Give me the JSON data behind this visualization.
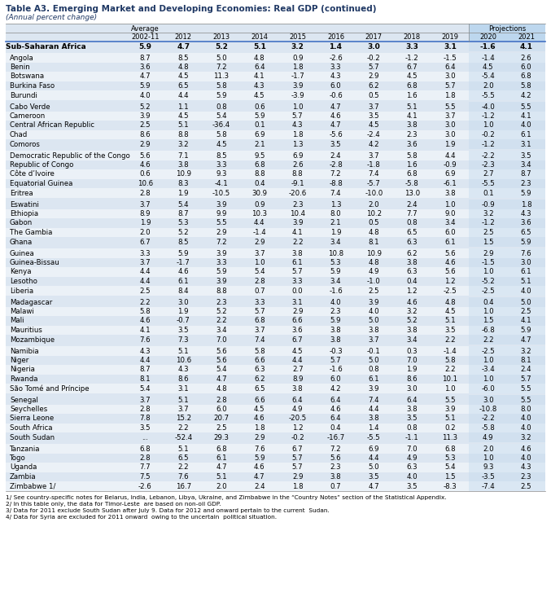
{
  "title": "Table A3. Emerging Market and Developing Economies: Real GDP (continued)",
  "subtitle": "(Annual percent change)",
  "table_bg": "#dce6f1",
  "header_line_color": "#4472c4",
  "proj_col_bg": "#bdd7ee",
  "rows": [
    [
      "Sub-Saharan Africa",
      "5.9",
      "4.7",
      "5.2",
      "5.1",
      "3.2",
      "1.4",
      "3.0",
      "3.3",
      "3.1",
      "-1.6",
      "4.1"
    ],
    [
      "Angola",
      "8.7",
      "8.5",
      "5.0",
      "4.8",
      "0.9",
      "-2.6",
      "-0.2",
      "-1.2",
      "-1.5",
      "-1.4",
      "2.6"
    ],
    [
      "Benin",
      "3.6",
      "4.8",
      "7.2",
      "6.4",
      "1.8",
      "3.3",
      "5.7",
      "6.7",
      "6.4",
      "4.5",
      "6.0"
    ],
    [
      "Botswana",
      "4.7",
      "4.5",
      "11.3",
      "4.1",
      "-1.7",
      "4.3",
      "2.9",
      "4.5",
      "3.0",
      "-5.4",
      "6.8"
    ],
    [
      "Burkina Faso",
      "5.9",
      "6.5",
      "5.8",
      "4.3",
      "3.9",
      "6.0",
      "6.2",
      "6.8",
      "5.7",
      "2.0",
      "5.8"
    ],
    [
      "Burundi",
      "4.0",
      "4.4",
      "5.9",
      "4.5",
      "-3.9",
      "-0.6",
      "0.5",
      "1.6",
      "1.8",
      "-5.5",
      "4.2"
    ],
    [
      "Cabo Verde",
      "5.2",
      "1.1",
      "0.8",
      "0.6",
      "1.0",
      "4.7",
      "3.7",
      "5.1",
      "5.5",
      "-4.0",
      "5.5"
    ],
    [
      "Cameroon",
      "3.9",
      "4.5",
      "5.4",
      "5.9",
      "5.7",
      "4.6",
      "3.5",
      "4.1",
      "3.7",
      "-1.2",
      "4.1"
    ],
    [
      "Central African Republic",
      "2.5",
      "5.1",
      "-36.4",
      "0.1",
      "4.3",
      "4.7",
      "4.5",
      "3.8",
      "3.0",
      "1.0",
      "4.0"
    ],
    [
      "Chad",
      "8.6",
      "8.8",
      "5.8",
      "6.9",
      "1.8",
      "-5.6",
      "-2.4",
      "2.3",
      "3.0",
      "-0.2",
      "6.1"
    ],
    [
      "Comoros",
      "2.9",
      "3.2",
      "4.5",
      "2.1",
      "1.3",
      "3.5",
      "4.2",
      "3.6",
      "1.9",
      "-1.2",
      "3.1"
    ],
    [
      "Democratic Republic of the Congo",
      "5.6",
      "7.1",
      "8.5",
      "9.5",
      "6.9",
      "2.4",
      "3.7",
      "5.8",
      "4.4",
      "-2.2",
      "3.5"
    ],
    [
      "Republic of Congo",
      "4.6",
      "3.8",
      "3.3",
      "6.8",
      "2.6",
      "-2.8",
      "-1.8",
      "1.6",
      "-0.9",
      "-2.3",
      "3.4"
    ],
    [
      "Côte d’Ivoire",
      "0.6",
      "10.9",
      "9.3",
      "8.8",
      "8.8",
      "7.2",
      "7.4",
      "6.8",
      "6.9",
      "2.7",
      "8.7"
    ],
    [
      "Equatorial Guinea",
      "10.6",
      "8.3",
      "-4.1",
      "0.4",
      "-9.1",
      "-8.8",
      "-5.7",
      "-5.8",
      "-6.1",
      "-5.5",
      "2.3"
    ],
    [
      "Eritrea",
      "2.8",
      "1.9",
      "-10.5",
      "30.9",
      "-20.6",
      "7.4",
      "-10.0",
      "13.0",
      "3.8",
      "0.1",
      "5.9"
    ],
    [
      "Eswatini",
      "3.7",
      "5.4",
      "3.9",
      "0.9",
      "2.3",
      "1.3",
      "2.0",
      "2.4",
      "1.0",
      "-0.9",
      "1.8"
    ],
    [
      "Ethiopia",
      "8.9",
      "8.7",
      "9.9",
      "10.3",
      "10.4",
      "8.0",
      "10.2",
      "7.7",
      "9.0",
      "3.2",
      "4.3"
    ],
    [
      "Gabon",
      "1.9",
      "5.3",
      "5.5",
      "4.4",
      "3.9",
      "2.1",
      "0.5",
      "0.8",
      "3.4",
      "-1.2",
      "3.6"
    ],
    [
      "The Gambia",
      "2.0",
      "5.2",
      "2.9",
      "-1.4",
      "4.1",
      "1.9",
      "4.8",
      "6.5",
      "6.0",
      "2.5",
      "6.5"
    ],
    [
      "Ghana",
      "6.7",
      "8.5",
      "7.2",
      "2.9",
      "2.2",
      "3.4",
      "8.1",
      "6.3",
      "6.1",
      "1.5",
      "5.9"
    ],
    [
      "Guinea",
      "3.3",
      "5.9",
      "3.9",
      "3.7",
      "3.8",
      "10.8",
      "10.9",
      "6.2",
      "5.6",
      "2.9",
      "7.6"
    ],
    [
      "Guinea-Bissau",
      "3.7",
      "-1.7",
      "3.3",
      "1.0",
      "6.1",
      "5.3",
      "4.8",
      "3.8",
      "4.6",
      "-1.5",
      "3.0"
    ],
    [
      "Kenya",
      "4.4",
      "4.6",
      "5.9",
      "5.4",
      "5.7",
      "5.9",
      "4.9",
      "6.3",
      "5.6",
      "1.0",
      "6.1"
    ],
    [
      "Lesotho",
      "4.4",
      "6.1",
      "3.9",
      "2.8",
      "3.3",
      "3.4",
      "-1.0",
      "0.4",
      "1.2",
      "-5.2",
      "5.1"
    ],
    [
      "Liberia",
      "2.5",
      "8.4",
      "8.8",
      "0.7",
      "0.0",
      "-1.6",
      "2.5",
      "1.2",
      "-2.5",
      "-2.5",
      "4.0"
    ],
    [
      "Madagascar",
      "2.2",
      "3.0",
      "2.3",
      "3.3",
      "3.1",
      "4.0",
      "3.9",
      "4.6",
      "4.8",
      "0.4",
      "5.0"
    ],
    [
      "Malawi",
      "5.8",
      "1.9",
      "5.2",
      "5.7",
      "2.9",
      "2.3",
      "4.0",
      "3.2",
      "4.5",
      "1.0",
      "2.5"
    ],
    [
      "Mali",
      "4.6",
      "-0.7",
      "2.2",
      "6.8",
      "6.6",
      "5.9",
      "5.0",
      "5.2",
      "5.1",
      "1.5",
      "4.1"
    ],
    [
      "Mauritius",
      "4.1",
      "3.5",
      "3.4",
      "3.7",
      "3.6",
      "3.8",
      "3.8",
      "3.8",
      "3.5",
      "-6.8",
      "5.9"
    ],
    [
      "Mozambique",
      "7.6",
      "7.3",
      "7.0",
      "7.4",
      "6.7",
      "3.8",
      "3.7",
      "3.4",
      "2.2",
      "2.2",
      "4.7"
    ],
    [
      "Namibia",
      "4.3",
      "5.1",
      "5.6",
      "5.8",
      "4.5",
      "-0.3",
      "-0.1",
      "0.3",
      "-1.4",
      "-2.5",
      "3.2"
    ],
    [
      "Niger",
      "4.4",
      "10.6",
      "5.6",
      "6.6",
      "4.4",
      "5.7",
      "5.0",
      "7.0",
      "5.8",
      "1.0",
      "8.1"
    ],
    [
      "Nigeria",
      "8.7",
      "4.3",
      "5.4",
      "6.3",
      "2.7",
      "-1.6",
      "0.8",
      "1.9",
      "2.2",
      "-3.4",
      "2.4"
    ],
    [
      "Rwanda",
      "8.1",
      "8.6",
      "4.7",
      "6.2",
      "8.9",
      "6.0",
      "6.1",
      "8.6",
      "10.1",
      "1.0",
      "5.7"
    ],
    [
      "São Tomé and Príncipe",
      "5.4",
      "3.1",
      "4.8",
      "6.5",
      "3.8",
      "4.2",
      "3.9",
      "3.0",
      "1.0",
      "-6.0",
      "5.5"
    ],
    [
      "Senegal",
      "3.7",
      "5.1",
      "2.8",
      "6.6",
      "6.4",
      "6.4",
      "7.4",
      "6.4",
      "5.5",
      "3.0",
      "5.5"
    ],
    [
      "Seychelles",
      "2.8",
      "3.7",
      "6.0",
      "4.5",
      "4.9",
      "4.6",
      "4.4",
      "3.8",
      "3.9",
      "-10.8",
      "8.0"
    ],
    [
      "Sierra Leone",
      "7.8",
      "15.2",
      "20.7",
      "4.6",
      "-20.5",
      "6.4",
      "3.8",
      "3.5",
      "5.1",
      "-2.2",
      "4.0"
    ],
    [
      "South Africa",
      "3.5",
      "2.2",
      "2.5",
      "1.8",
      "1.2",
      "0.4",
      "1.4",
      "0.8",
      "0.2",
      "-5.8",
      "4.0"
    ],
    [
      "South Sudan",
      "...",
      "-52.4",
      "29.3",
      "2.9",
      "-0.2",
      "-16.7",
      "-5.5",
      "-1.1",
      "11.3",
      "4.9",
      "3.2"
    ],
    [
      "Tanzania",
      "6.8",
      "5.1",
      "6.8",
      "7.6",
      "6.7",
      "7.2",
      "6.9",
      "7.0",
      "6.8",
      "2.0",
      "4.6"
    ],
    [
      "Togo",
      "2.8",
      "6.5",
      "6.1",
      "5.9",
      "5.7",
      "5.6",
      "4.4",
      "4.9",
      "5.3",
      "1.0",
      "4.0"
    ],
    [
      "Uganda",
      "7.7",
      "2.2",
      "4.7",
      "4.6",
      "5.7",
      "2.3",
      "5.0",
      "6.3",
      "5.4",
      "9.3",
      "4.3"
    ],
    [
      "Zambia",
      "7.5",
      "7.6",
      "5.1",
      "4.7",
      "2.9",
      "3.8",
      "3.5",
      "4.0",
      "1.5",
      "-3.5",
      "2.3"
    ],
    [
      "Zimbabwe 1/",
      "-2.6",
      "16.7",
      "2.0",
      "2.4",
      "1.8",
      "0.7",
      "4.7",
      "3.5",
      "-8.3",
      "-7.4",
      "2.5"
    ]
  ],
  "bold_rows": [
    0
  ],
  "group_starts": [
    1,
    6,
    11,
    16,
    21,
    26,
    31,
    36,
    41
  ],
  "col_labels": [
    "2002-11",
    "2012",
    "2013",
    "2014",
    "2015",
    "2016",
    "2017",
    "2018",
    "2019",
    "2020",
    "2021"
  ],
  "footnotes": [
    "1/ See country-specific notes for Belarus, India, Lebanon, Libya, Ukraine, and Zimbabwe in the “Country Notes” section of the Statistical Appendix.",
    "2/ In this table only, the data for Timor-Leste  are based on non-oil GDP.",
    "3/ Data for 2011 exclude South Sudan after July 9. Data for 2012 and onward pertain to the current  Sudan.",
    "4/ Data for Syria are excluded for 2011 onward  owing to the uncertain  political situation."
  ]
}
